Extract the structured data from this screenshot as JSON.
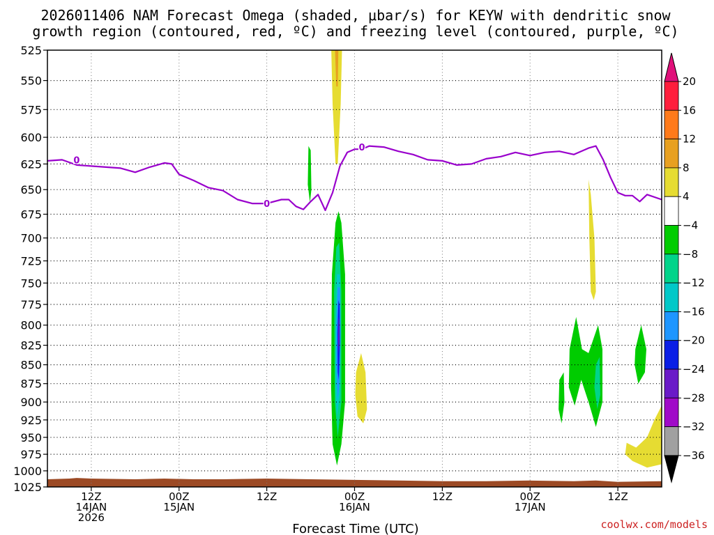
{
  "chart_data": {
    "type": "filled-contour",
    "title_line1": "2026011406 NAM Forecast Omega (shaded, μbar/s) for KEYW with dendritic snow",
    "title_line2": "growth region (contoured, red, ºC) and freezing level (contoured, purple, ºC)",
    "xlabel": "Forecast Time (UTC)",
    "credit": "coolwx.com/models",
    "x_range_hours": [
      0,
      84
    ],
    "y_range_hpa": [
      525,
      1025
    ],
    "y_scale": "log-pressure",
    "grid": true,
    "y_ticks": [
      525,
      550,
      575,
      600,
      625,
      650,
      675,
      700,
      725,
      750,
      775,
      800,
      825,
      850,
      875,
      900,
      925,
      950,
      975,
      1000,
      1025
    ],
    "x_ticks": [
      {
        "h": 6,
        "l1": "12Z",
        "l2": "14JAN",
        "l3": "2026"
      },
      {
        "h": 18,
        "l1": "00Z",
        "l2": "15JAN",
        "l3": ""
      },
      {
        "h": 30,
        "l1": "12Z",
        "l2": "",
        "l3": ""
      },
      {
        "h": 42,
        "l1": "00Z",
        "l2": "16JAN",
        "l3": ""
      },
      {
        "h": 54,
        "l1": "12Z",
        "l2": "",
        "l3": ""
      },
      {
        "h": 66,
        "l1": "00Z",
        "l2": "17JAN",
        "l3": ""
      },
      {
        "h": 78,
        "l1": "12Z",
        "l2": "",
        "l3": ""
      }
    ],
    "colorbar": {
      "labels": [
        "20",
        "16",
        "12",
        "8",
        "4",
        "−4",
        "−8",
        "−12",
        "−16",
        "−20",
        "−24",
        "−28",
        "−32",
        "−36"
      ],
      "colors": [
        "#ff1e3c",
        "#ff7a1a",
        "#e8a020",
        "#e6dc32",
        "#ffffff",
        "#00cc00",
        "#00d48a",
        "#00c8c8",
        "#1e96ff",
        "#0a1ee6",
        "#6a1ac8",
        "#a00ac8",
        "#a0a0a0"
      ],
      "top_color": "#e0107a",
      "bottom_color": "#000000"
    },
    "freezing_level": {
      "color": "#9900cc",
      "label": "0",
      "points": [
        [
          0,
          622
        ],
        [
          2,
          621
        ],
        [
          4,
          626
        ],
        [
          6,
          627
        ],
        [
          8,
          628
        ],
        [
          10,
          629
        ],
        [
          12,
          633
        ],
        [
          14,
          628
        ],
        [
          16,
          624
        ],
        [
          17,
          625
        ],
        [
          18,
          635
        ],
        [
          20,
          641
        ],
        [
          22,
          648
        ],
        [
          24,
          651
        ],
        [
          26,
          660
        ],
        [
          28,
          664
        ],
        [
          30,
          664
        ],
        [
          32,
          660
        ],
        [
          33,
          660
        ],
        [
          34,
          667
        ],
        [
          35,
          670
        ],
        [
          36,
          662
        ],
        [
          37,
          655
        ],
        [
          38,
          671
        ],
        [
          39,
          653
        ],
        [
          40,
          627
        ],
        [
          41,
          614
        ],
        [
          42,
          611
        ],
        [
          43,
          611
        ],
        [
          44,
          608
        ],
        [
          46,
          609
        ],
        [
          48,
          613
        ],
        [
          50,
          616
        ],
        [
          52,
          621
        ],
        [
          54,
          622
        ],
        [
          56,
          626
        ],
        [
          58,
          625
        ],
        [
          60,
          620
        ],
        [
          62,
          618
        ],
        [
          64,
          614
        ],
        [
          66,
          617
        ],
        [
          68,
          614
        ],
        [
          70,
          613
        ],
        [
          72,
          616
        ],
        [
          74,
          610
        ],
        [
          75,
          608
        ],
        [
          76,
          621
        ],
        [
          77,
          638
        ],
        [
          78,
          653
        ],
        [
          79,
          656
        ],
        [
          80,
          656
        ],
        [
          81,
          662
        ],
        [
          82,
          655
        ],
        [
          84,
          660
        ]
      ],
      "labels_at": [
        [
          4,
          621
        ],
        [
          30,
          664
        ],
        [
          43,
          609
        ]
      ]
    },
    "omega_regions": [
      {
        "value": 4,
        "color": "#e6dc32",
        "points": [
          [
            38.8,
            520
          ],
          [
            40.3,
            520
          ],
          [
            40.1,
            570
          ],
          [
            39.7,
            625
          ],
          [
            39.4,
            625
          ],
          [
            39.0,
            570
          ]
        ]
      },
      {
        "value": 8,
        "color": "#e8a020",
        "points": [
          [
            39.3,
            520
          ],
          [
            39.8,
            520
          ],
          [
            39.7,
            555
          ],
          [
            39.5,
            555
          ]
        ]
      },
      {
        "value": -4,
        "color": "#00cc00",
        "points": [
          [
            35.7,
            608
          ],
          [
            36.0,
            612
          ],
          [
            36.1,
            650
          ],
          [
            35.9,
            663
          ],
          [
            35.6,
            645
          ]
        ]
      },
      {
        "value": -4,
        "color": "#00cc00",
        "points": [
          [
            39.4,
            684
          ],
          [
            39.8,
            672
          ],
          [
            40.2,
            684
          ],
          [
            40.7,
            740
          ],
          [
            40.7,
            900
          ],
          [
            40.2,
            960
          ],
          [
            39.6,
            992
          ],
          [
            39.0,
            960
          ],
          [
            38.8,
            880
          ],
          [
            38.9,
            740
          ]
        ]
      },
      {
        "value": -8,
        "color": "#00d48a",
        "points": [
          [
            39.5,
            710
          ],
          [
            39.9,
            705
          ],
          [
            40.2,
            760
          ],
          [
            40.2,
            900
          ],
          [
            39.7,
            950
          ],
          [
            39.3,
            900
          ],
          [
            39.2,
            760
          ]
        ]
      },
      {
        "value": -12,
        "color": "#00c8c8",
        "points": [
          [
            39.6,
            740
          ],
          [
            40.0,
            740
          ],
          [
            40.1,
            800
          ],
          [
            40.0,
            890
          ],
          [
            39.6,
            920
          ],
          [
            39.4,
            880
          ],
          [
            39.4,
            800
          ]
        ]
      },
      {
        "value": -16,
        "color": "#1e96ff",
        "points": [
          [
            39.7,
            755
          ],
          [
            40.0,
            755
          ],
          [
            40.1,
            810
          ],
          [
            39.9,
            880
          ],
          [
            39.7,
            895
          ],
          [
            39.5,
            850
          ],
          [
            39.5,
            800
          ]
        ]
      },
      {
        "value": -20,
        "color": "#0a1ee6",
        "points": [
          [
            39.8,
            770
          ],
          [
            39.95,
            775
          ],
          [
            40.0,
            820
          ],
          [
            39.85,
            870
          ],
          [
            39.7,
            860
          ],
          [
            39.65,
            810
          ]
        ]
      },
      {
        "value": -24,
        "color": "#6a1ac8",
        "points": [
          [
            39.82,
            790
          ],
          [
            39.92,
            795
          ],
          [
            39.93,
            820
          ],
          [
            39.84,
            835
          ],
          [
            39.76,
            820
          ]
        ]
      },
      {
        "value": 4,
        "color": "#e6dc32",
        "points": [
          [
            42.2,
            860
          ],
          [
            42.9,
            835
          ],
          [
            43.5,
            860
          ],
          [
            43.7,
            910
          ],
          [
            43.2,
            930
          ],
          [
            42.4,
            920
          ],
          [
            42.1,
            890
          ]
        ]
      },
      {
        "value": 4,
        "color": "#e6dc32",
        "points": [
          [
            74.0,
            640
          ],
          [
            74.3,
            655
          ],
          [
            74.8,
            700
          ],
          [
            75.0,
            760
          ],
          [
            74.7,
            770
          ],
          [
            74.3,
            760
          ],
          [
            74.1,
            700
          ]
        ]
      },
      {
        "value": 4,
        "color": "#e6dc32",
        "points": [
          [
            80.5,
            965
          ],
          [
            82,
            950
          ],
          [
            83,
            925
          ],
          [
            84,
            905
          ],
          [
            84,
            990
          ],
          [
            82,
            995
          ],
          [
            80,
            985
          ],
          [
            79.0,
            975
          ],
          [
            79.2,
            958
          ]
        ]
      },
      {
        "value": -4,
        "color": "#00cc00",
        "points": [
          [
            70.0,
            870
          ],
          [
            70.6,
            860
          ],
          [
            70.7,
            900
          ],
          [
            70.3,
            930
          ],
          [
            69.9,
            910
          ]
        ]
      },
      {
        "value": -4,
        "color": "#00cc00",
        "points": [
          [
            71.4,
            830
          ],
          [
            72.3,
            790
          ],
          [
            73.1,
            830
          ],
          [
            74.0,
            835
          ],
          [
            75.3,
            800
          ],
          [
            75.9,
            830
          ],
          [
            75.9,
            900
          ],
          [
            75.0,
            935
          ],
          [
            74.0,
            900
          ],
          [
            73.0,
            870
          ],
          [
            72.1,
            905
          ],
          [
            71.3,
            880
          ]
        ]
      },
      {
        "value": -8,
        "color": "#00d48a",
        "points": [
          [
            75.0,
            850
          ],
          [
            75.5,
            840
          ],
          [
            75.6,
            890
          ],
          [
            75.2,
            910
          ],
          [
            74.8,
            880
          ]
        ]
      },
      {
        "value": -4,
        "color": "#00cc00",
        "points": [
          [
            80.4,
            830
          ],
          [
            81.2,
            800
          ],
          [
            81.9,
            830
          ],
          [
            81.7,
            860
          ],
          [
            80.8,
            875
          ],
          [
            80.3,
            850
          ]
        ]
      }
    ],
    "ground": {
      "color": "#9c4a25",
      "points": [
        [
          0,
          1013
        ],
        [
          3,
          1012
        ],
        [
          4,
          1011
        ],
        [
          6,
          1012
        ],
        [
          12,
          1013
        ],
        [
          16,
          1012
        ],
        [
          20,
          1013
        ],
        [
          24,
          1013
        ],
        [
          30,
          1012
        ],
        [
          36,
          1013
        ],
        [
          42,
          1014
        ],
        [
          48,
          1015
        ],
        [
          54,
          1016
        ],
        [
          60,
          1016
        ],
        [
          66,
          1015
        ],
        [
          72,
          1016
        ],
        [
          75,
          1015
        ],
        [
          78,
          1017
        ],
        [
          84,
          1016
        ]
      ]
    }
  }
}
